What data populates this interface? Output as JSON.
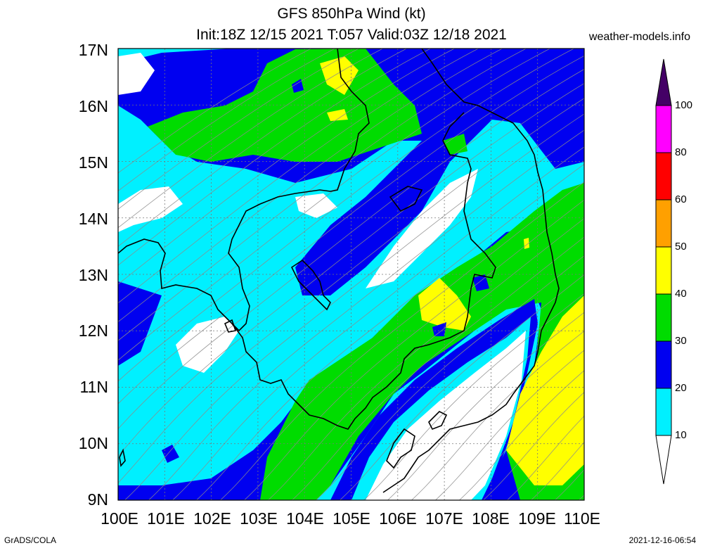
{
  "title_line1": "GFS 850hPa Wind (kt)",
  "title_line2": "Init:18Z 12/15 2021 T:057 Valid:03Z 12/18 2021",
  "website": "weather-models.info",
  "lat_labels": [
    "17N",
    "16N",
    "15N",
    "14N",
    "13N",
    "12N",
    "11N",
    "10N",
    "9N"
  ],
  "lon_labels": [
    "100E",
    "101E",
    "102E",
    "103E",
    "104E",
    "105E",
    "106E",
    "107E",
    "108E",
    "109E",
    "110E"
  ],
  "colorbar": {
    "levels": [
      "100",
      "80",
      "60",
      "50",
      "40",
      "30",
      "20",
      "10"
    ],
    "colors": {
      "white": "#ffffff",
      "cyan": "#00f0ff",
      "blue": "#0000f0",
      "green": "#00dc00",
      "yellow": "#ffff00",
      "orange": "#ffa000",
      "red": "#ff0000",
      "magenta": "#ff00ff",
      "purple": "#440066"
    }
  },
  "footer_left": "GrADS/COLA",
  "footer_right": "2021-12-16-06:54"
}
